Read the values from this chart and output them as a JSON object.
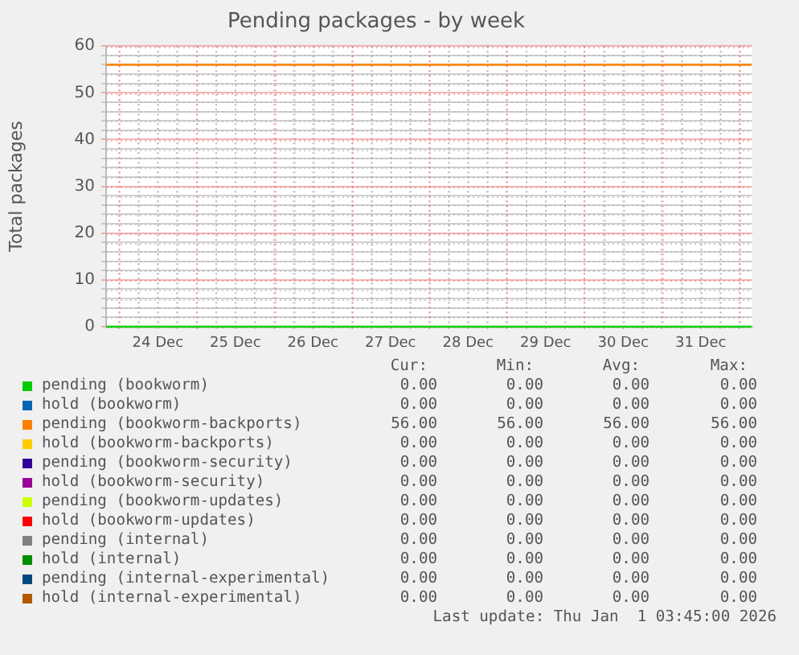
{
  "chart_data": {
    "type": "line",
    "title": "Pending packages - by week",
    "ylabel": "Total packages",
    "xlim": [
      "2025-12-23T20:00",
      "2026-01-01T04:00"
    ],
    "xticks": [
      {
        "value": "2025-12-24T00:00",
        "label": null
      },
      {
        "value": "2025-12-24T06:00",
        "label": null
      },
      {
        "value": "2025-12-24T12:00",
        "label": "24 Dec"
      },
      {
        "value": "2025-12-24T18:00",
        "label": null
      },
      {
        "value": "2025-12-25T00:00",
        "label": null
      },
      {
        "value": "2025-12-25T06:00",
        "label": null
      },
      {
        "value": "2025-12-25T12:00",
        "label": "25 Dec"
      },
      {
        "value": "2025-12-25T18:00",
        "label": null
      },
      {
        "value": "2025-12-26T00:00",
        "label": null
      },
      {
        "value": "2025-12-26T06:00",
        "label": null
      },
      {
        "value": "2025-12-26T12:00",
        "label": "26 Dec"
      },
      {
        "value": "2025-12-26T18:00",
        "label": null
      },
      {
        "value": "2025-12-27T00:00",
        "label": null
      },
      {
        "value": "2025-12-27T06:00",
        "label": null
      },
      {
        "value": "2025-12-27T12:00",
        "label": "27 Dec"
      },
      {
        "value": "2025-12-27T18:00",
        "label": null
      },
      {
        "value": "2025-12-28T00:00",
        "label": null
      },
      {
        "value": "2025-12-28T06:00",
        "label": null
      },
      {
        "value": "2025-12-28T12:00",
        "label": "28 Dec"
      },
      {
        "value": "2025-12-28T18:00",
        "label": null
      },
      {
        "value": "2025-12-29T00:00",
        "label": null
      },
      {
        "value": "2025-12-29T06:00",
        "label": null
      },
      {
        "value": "2025-12-29T12:00",
        "label": "29 Dec"
      },
      {
        "value": "2025-12-29T18:00",
        "label": null
      },
      {
        "value": "2025-12-30T00:00",
        "label": null
      },
      {
        "value": "2025-12-30T06:00",
        "label": null
      },
      {
        "value": "2025-12-30T12:00",
        "label": "30 Dec"
      },
      {
        "value": "2025-12-30T18:00",
        "label": null
      },
      {
        "value": "2025-12-31T00:00",
        "label": null
      },
      {
        "value": "2025-12-31T06:00",
        "label": null
      },
      {
        "value": "2025-12-31T12:00",
        "label": "31 Dec"
      },
      {
        "value": "2025-12-31T18:00",
        "label": null
      },
      {
        "value": "2026-01-01T00:00",
        "label": null
      }
    ],
    "ylim": [
      0,
      60
    ],
    "yticks": [
      0,
      {
        "value": 2,
        "label": null
      },
      {
        "value": 4,
        "label": null
      },
      {
        "value": 6,
        "label": null
      },
      {
        "value": 8,
        "label": null
      },
      10,
      {
        "value": 12,
        "label": null
      },
      {
        "value": 14,
        "label": null
      },
      {
        "value": 16,
        "label": null
      },
      {
        "value": 18,
        "label": null
      },
      20,
      {
        "value": 22,
        "label": null
      },
      {
        "value": 24,
        "label": null
      },
      {
        "value": 26,
        "label": null
      },
      {
        "value": 28,
        "label": null
      },
      30,
      {
        "value": 32,
        "label": null
      },
      {
        "value": 34,
        "label": null
      },
      {
        "value": 36,
        "label": null
      },
      {
        "value": 38,
        "label": null
      },
      40,
      {
        "value": 42,
        "label": null
      },
      {
        "value": 44,
        "label": null
      },
      {
        "value": 46,
        "label": null
      },
      {
        "value": 48,
        "label": null
      },
      50,
      {
        "value": 52,
        "label": null
      },
      {
        "value": 54,
        "label": null
      },
      {
        "value": 56,
        "label": null
      },
      {
        "value": 58,
        "label": null
      },
      60
    ],
    "grid": true,
    "legend": "bottom",
    "marker": "none",
    "x": [
      "2025-12-23T20:00",
      "2026-01-01T03:45"
    ],
    "series": [
      {
        "name": "pending (bookworm)",
        "color": "#00cc00",
        "values": [
          0,
          0
        ]
      },
      {
        "name": "hold (bookworm)",
        "color": "#0066b3",
        "values": [
          null,
          null
        ]
      },
      {
        "name": "pending (bookworm-backports)",
        "color": "#ff8000",
        "values": [
          56,
          56
        ]
      },
      {
        "name": "hold (bookworm-backports)",
        "color": "#ffcc00",
        "values": [
          null,
          null
        ]
      },
      {
        "name": "pending (bookworm-security)",
        "color": "#330099",
        "values": [
          null,
          null
        ]
      },
      {
        "name": "hold (bookworm-security)",
        "color": "#990099",
        "values": [
          null,
          null
        ]
      },
      {
        "name": "pending (bookworm-updates)",
        "color": "#ccff00",
        "values": [
          null,
          null
        ]
      },
      {
        "name": "hold (bookworm-updates)",
        "color": "#ff0000",
        "values": [
          null,
          null
        ]
      },
      {
        "name": "pending (internal)",
        "color": "#808080",
        "values": [
          null,
          null
        ]
      },
      {
        "name": "hold (internal)",
        "color": "#008f00",
        "values": [
          null,
          null
        ]
      },
      {
        "name": "pending (internal-experimental)",
        "color": "#00487d",
        "values": [
          null,
          null
        ]
      },
      {
        "name": "hold (internal-experimental)",
        "color": "#b35a00",
        "values": [
          null,
          null
        ]
      }
    ],
    "annotations": [
      "Cur:",
      "Min:",
      "Avg:",
      "Max:",
      "0.00",
      "0.00",
      "0.00",
      "0.00",
      "0.00",
      "0.00",
      "0.00",
      "0.00",
      "56.00",
      "56.00",
      "56.00",
      "56.00",
      "0.00",
      "0.00",
      "0.00",
      "0.00",
      "0.00",
      "0.00",
      "0.00",
      "0.00",
      "0.00",
      "0.00",
      "0.00",
      "0.00",
      "0.00",
      "0.00",
      "0.00",
      "0.00",
      "0.00",
      "0.00",
      "0.00",
      "0.00",
      "0.00",
      "0.00",
      "0.00",
      "0.00",
      "0.00",
      "0.00",
      "0.00",
      "0.00",
      "0.00",
      "0.00",
      "0.00",
      "0.00",
      "0.00",
      "0.00",
      "0.00",
      "0.00",
      "Last update: Thu Jan  1 03:45:00 2026"
    ]
  }
}
